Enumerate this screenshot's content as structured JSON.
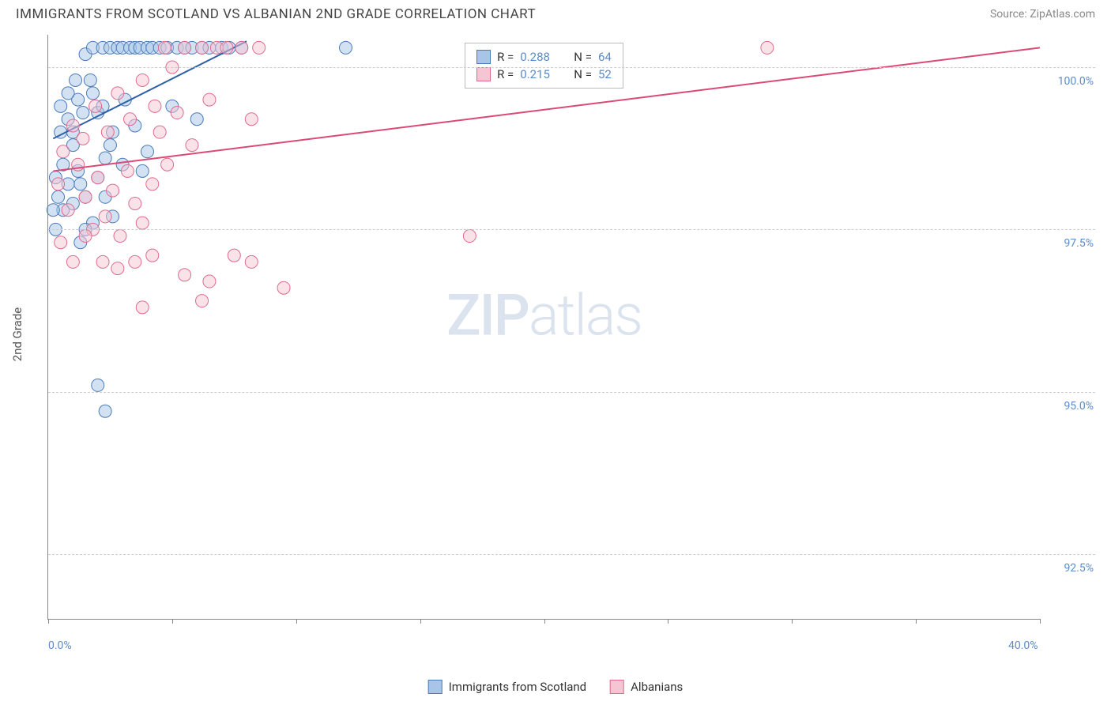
{
  "title": "IMMIGRANTS FROM SCOTLAND VS ALBANIAN 2ND GRADE CORRELATION CHART",
  "source": "Source: ZipAtlas.com",
  "watermark": {
    "bold": "ZIP",
    "light": "atlas"
  },
  "y_axis": {
    "label": "2nd Grade"
  },
  "chart": {
    "type": "scatter",
    "xlim": [
      0,
      40
    ],
    "ylim": [
      91.5,
      100.5
    ],
    "x_ticks": [
      0,
      5,
      10,
      15,
      20,
      25,
      30,
      35,
      40
    ],
    "x_tick_labels": {
      "0": "0.0%",
      "40": "40.0%"
    },
    "y_ticks": [
      92.5,
      95.0,
      97.5,
      100.0
    ],
    "y_tick_labels": [
      "92.5%",
      "95.0%",
      "97.5%",
      "100.0%"
    ],
    "grid_color": "#cccccc",
    "axis_color": "#888888",
    "background_color": "#ffffff",
    "marker_radius": 8,
    "marker_opacity": 0.5,
    "line_width": 2
  },
  "series": [
    {
      "name": "Immigrants from Scotland",
      "color_fill": "#a8c5e8",
      "color_stroke": "#4a7bb8",
      "color_line": "#2d5fa8",
      "R": "0.288",
      "N": "64",
      "trend": {
        "x1": 0.2,
        "y1": 98.9,
        "x2": 8.0,
        "y2": 100.4
      },
      "points": [
        [
          0.3,
          98.3
        ],
        [
          0.5,
          99.0
        ],
        [
          0.6,
          98.5
        ],
        [
          0.8,
          99.2
        ],
        [
          1.0,
          98.8
        ],
        [
          1.2,
          99.5
        ],
        [
          1.3,
          98.2
        ],
        [
          1.5,
          100.2
        ],
        [
          1.7,
          99.8
        ],
        [
          1.8,
          100.3
        ],
        [
          2.0,
          99.3
        ],
        [
          2.2,
          100.3
        ],
        [
          2.3,
          98.6
        ],
        [
          2.5,
          100.3
        ],
        [
          2.6,
          99.0
        ],
        [
          2.8,
          100.3
        ],
        [
          3.0,
          100.3
        ],
        [
          3.1,
          99.5
        ],
        [
          3.3,
          100.3
        ],
        [
          3.5,
          100.3
        ],
        [
          3.7,
          100.3
        ],
        [
          3.8,
          98.4
        ],
        [
          4.0,
          100.3
        ],
        [
          4.2,
          100.3
        ],
        [
          4.5,
          100.3
        ],
        [
          4.8,
          100.3
        ],
        [
          5.0,
          99.4
        ],
        [
          5.2,
          100.3
        ],
        [
          5.5,
          100.3
        ],
        [
          5.8,
          100.3
        ],
        [
          6.0,
          99.2
        ],
        [
          6.2,
          100.3
        ],
        [
          6.5,
          100.3
        ],
        [
          7.0,
          100.3
        ],
        [
          7.3,
          100.3
        ],
        [
          7.8,
          100.3
        ],
        [
          0.4,
          98.0
        ],
        [
          0.6,
          97.8
        ],
        [
          0.8,
          98.2
        ],
        [
          1.0,
          97.9
        ],
        [
          1.2,
          98.4
        ],
        [
          1.5,
          98.0
        ],
        [
          1.8,
          97.6
        ],
        [
          2.0,
          98.3
        ],
        [
          2.3,
          98.0
        ],
        [
          2.6,
          97.7
        ],
        [
          1.0,
          99.0
        ],
        [
          1.4,
          99.3
        ],
        [
          1.8,
          99.6
        ],
        [
          2.2,
          99.4
        ],
        [
          0.5,
          99.4
        ],
        [
          0.8,
          99.6
        ],
        [
          1.1,
          99.8
        ],
        [
          2.5,
          98.8
        ],
        [
          3.0,
          98.5
        ],
        [
          3.5,
          99.1
        ],
        [
          4.0,
          98.7
        ],
        [
          0.2,
          97.8
        ],
        [
          0.3,
          97.5
        ],
        [
          1.5,
          97.5
        ],
        [
          2.0,
          95.1
        ],
        [
          2.3,
          94.7
        ],
        [
          12.0,
          100.3
        ],
        [
          1.3,
          97.3
        ]
      ]
    },
    {
      "name": "Albanians",
      "color_fill": "#f5c5d3",
      "color_stroke": "#e06b8f",
      "color_line": "#d94a76",
      "R": "0.215",
      "N": "52",
      "trend": {
        "x1": 0.2,
        "y1": 98.4,
        "x2": 40.0,
        "y2": 100.3
      },
      "points": [
        [
          0.4,
          98.2
        ],
        [
          0.8,
          97.8
        ],
        [
          1.2,
          98.5
        ],
        [
          1.5,
          98.0
        ],
        [
          1.8,
          97.5
        ],
        [
          2.0,
          98.3
        ],
        [
          2.3,
          97.7
        ],
        [
          2.6,
          98.1
        ],
        [
          2.9,
          97.4
        ],
        [
          3.2,
          98.4
        ],
        [
          3.5,
          97.9
        ],
        [
          3.8,
          97.6
        ],
        [
          4.2,
          98.2
        ],
        [
          4.5,
          99.0
        ],
        [
          4.8,
          98.5
        ],
        [
          5.2,
          99.3
        ],
        [
          5.5,
          100.3
        ],
        [
          5.8,
          98.8
        ],
        [
          6.2,
          100.3
        ],
        [
          6.5,
          99.5
        ],
        [
          6.8,
          100.3
        ],
        [
          7.2,
          100.3
        ],
        [
          7.8,
          100.3
        ],
        [
          8.2,
          99.2
        ],
        [
          8.5,
          100.3
        ],
        [
          0.6,
          98.7
        ],
        [
          1.0,
          99.1
        ],
        [
          1.4,
          98.9
        ],
        [
          1.9,
          99.4
        ],
        [
          2.4,
          99.0
        ],
        [
          2.8,
          99.6
        ],
        [
          3.3,
          99.2
        ],
        [
          3.8,
          99.8
        ],
        [
          4.3,
          99.4
        ],
        [
          4.7,
          100.3
        ],
        [
          5.0,
          100.0
        ],
        [
          0.5,
          97.3
        ],
        [
          1.0,
          97.0
        ],
        [
          1.5,
          97.4
        ],
        [
          2.2,
          97.0
        ],
        [
          2.8,
          96.9
        ],
        [
          3.5,
          97.0
        ],
        [
          4.2,
          97.1
        ],
        [
          5.5,
          96.8
        ],
        [
          6.5,
          96.7
        ],
        [
          7.5,
          97.1
        ],
        [
          8.2,
          97.0
        ],
        [
          9.5,
          96.6
        ],
        [
          3.8,
          96.3
        ],
        [
          6.2,
          96.4
        ],
        [
          17.0,
          97.4
        ],
        [
          29.0,
          100.3
        ]
      ]
    }
  ],
  "legend_top_labels": {
    "R": "R =",
    "N": "N ="
  },
  "legend_bottom": [
    {
      "label": "Immigrants from Scotland",
      "fill": "#a8c5e8",
      "stroke": "#4a7bb8"
    },
    {
      "label": "Albanians",
      "fill": "#f5c5d3",
      "stroke": "#e06b8f"
    }
  ]
}
